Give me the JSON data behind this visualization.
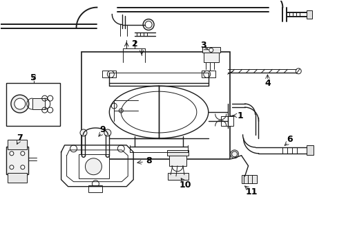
{
  "background_color": "#ffffff",
  "line_color": "#1a1a1a",
  "text_color": "#000000",
  "figsize": [
    4.89,
    3.6
  ],
  "dpi": 100,
  "label_fontsize": 9
}
